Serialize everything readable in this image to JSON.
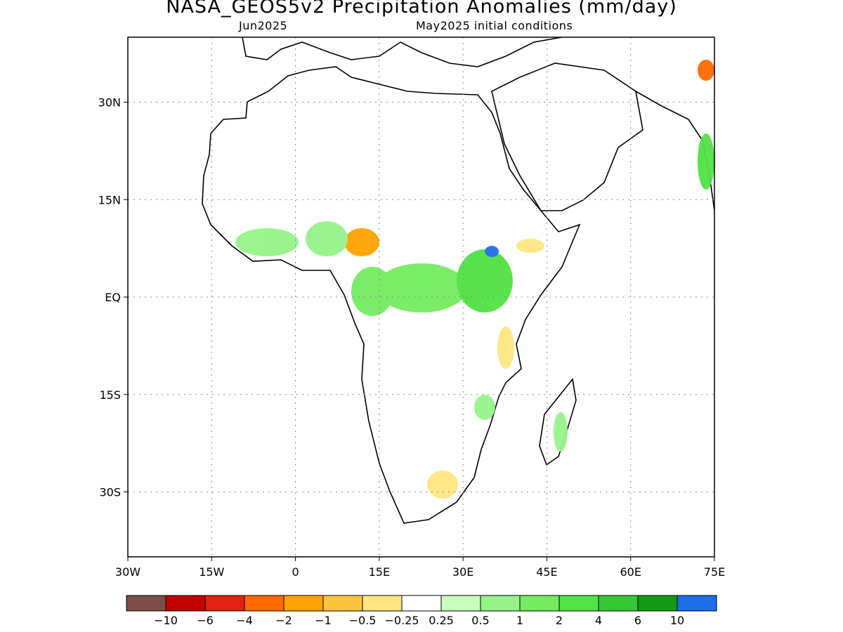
{
  "title": "NASA_GEOS5v2 Precipitation Anomalies (mm/day)",
  "subtitle_left": "Jun2025",
  "subtitle_right": "May2025 initial conditions",
  "map": {
    "lon_range": [
      -30,
      75
    ],
    "lat_range": [
      -40,
      40
    ],
    "lon_ticks": [
      "30W",
      "15W",
      "0",
      "15E",
      "30E",
      "45E",
      "60E",
      "75E"
    ],
    "lat_ticks": [
      "30N",
      "15N",
      "EQ",
      "15S",
      "30S"
    ],
    "grid": "dotted"
  },
  "legend": {
    "colors": [
      "#7b4f45",
      "#c20000",
      "#e5200e",
      "#ff6a00",
      "#ffa200",
      "#ffc43d",
      "#ffe680",
      "#ffffff",
      "#c8ffbe",
      "#96f38a",
      "#74ec60",
      "#50e244",
      "#34c834",
      "#139a13",
      "#1e6ee8"
    ],
    "labels": [
      "−10",
      "−6",
      "−4",
      "−2",
      "−1",
      "−0.5",
      "−0.25",
      "0.25",
      "0.5",
      "1",
      "2",
      "4",
      "6",
      "10"
    ]
  }
}
